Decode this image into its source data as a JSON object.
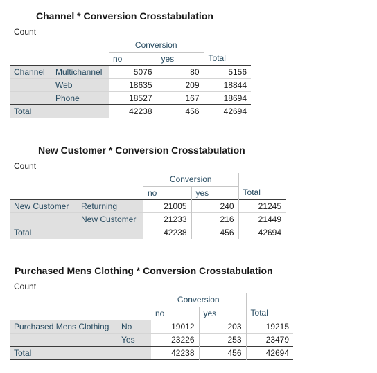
{
  "tables": [
    {
      "title": "Channel * Conversion Crosstabulation",
      "count_label": "Count",
      "col_group": "Conversion",
      "col_no": "no",
      "col_yes": "yes",
      "col_total": "Total",
      "row_var": "Channel",
      "rows": [
        {
          "label": "Multichannel",
          "no": "5076",
          "yes": "80",
          "total": "5156"
        },
        {
          "label": "Web",
          "no": "18635",
          "yes": "209",
          "total": "18844"
        },
        {
          "label": "Phone",
          "no": "18527",
          "yes": "167",
          "total": "18694"
        }
      ],
      "total_label": "Total",
      "total": {
        "no": "42238",
        "yes": "456",
        "total": "42694"
      }
    },
    {
      "title": "New Customer * Conversion Crosstabulation",
      "count_label": "Count",
      "col_group": "Conversion",
      "col_no": "no",
      "col_yes": "yes",
      "col_total": "Total",
      "row_var": "New Customer",
      "rows": [
        {
          "label": "Returning",
          "no": "21005",
          "yes": "240",
          "total": "21245"
        },
        {
          "label": "New Customer",
          "no": "21233",
          "yes": "216",
          "total": "21449"
        }
      ],
      "total_label": "Total",
      "total": {
        "no": "42238",
        "yes": "456",
        "total": "42694"
      }
    },
    {
      "title": "Purchased Mens Clothing * Conversion Crosstabulation",
      "count_label": "Count",
      "col_group": "Conversion",
      "col_no": "no",
      "col_yes": "yes",
      "col_total": "Total",
      "row_var": "Purchased Mens Clothing",
      "rows": [
        {
          "label": "No",
          "no": "19012",
          "yes": "203",
          "total": "19215"
        },
        {
          "label": "Yes",
          "no": "23226",
          "yes": "253",
          "total": "23479"
        }
      ],
      "total_label": "Total",
      "total": {
        "no": "42238",
        "yes": "456",
        "total": "42694"
      }
    }
  ]
}
